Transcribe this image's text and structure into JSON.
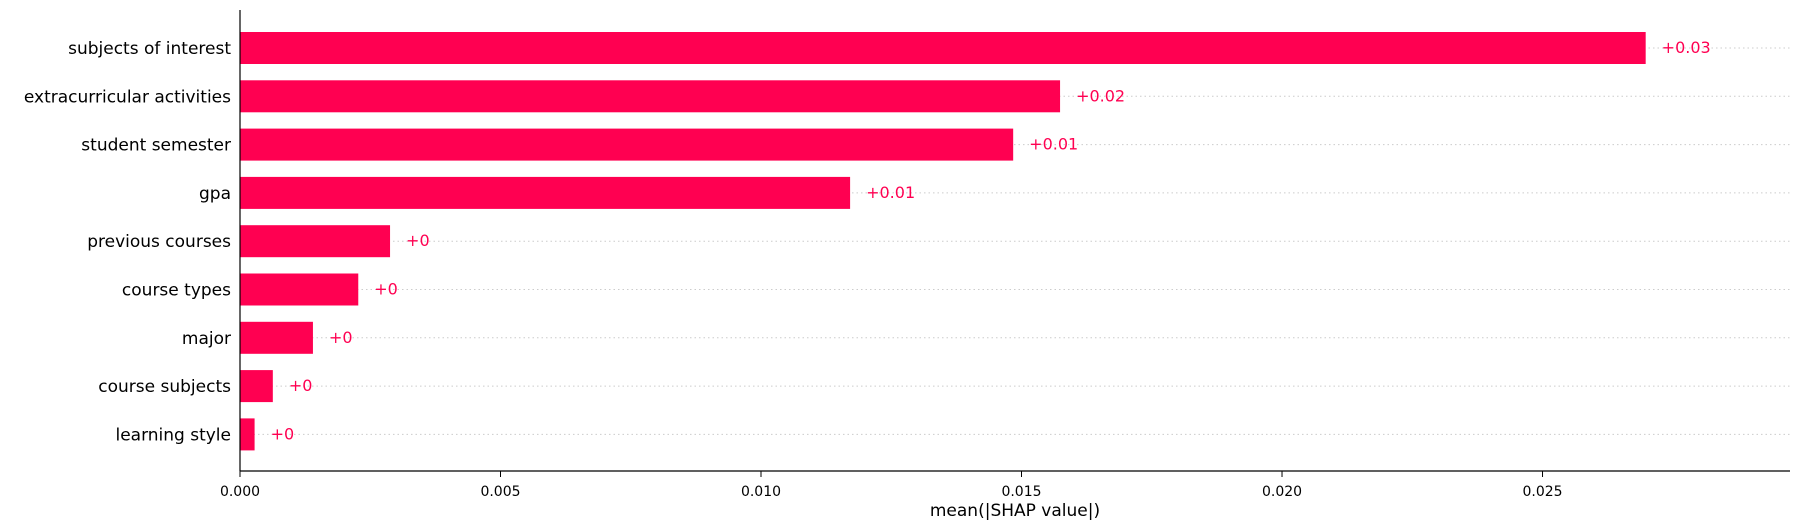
{
  "chart_data": {
    "type": "bar",
    "orientation": "horizontal",
    "categories": [
      "subjects of interest",
      "extracurricular activities",
      "student semester",
      "gpa",
      "previous courses",
      "course types",
      "major",
      "course subjects",
      "learning style"
    ],
    "values": [
      0.02698,
      0.01574,
      0.01484,
      0.01171,
      0.00288,
      0.00227,
      0.0014,
      0.00063,
      0.00028
    ],
    "value_labels": [
      "+0.03",
      "+0.02",
      "+0.01",
      "+0.01",
      "+0",
      "+0",
      "+0",
      "+0",
      "+0"
    ],
    "xlim": [
      0,
      0.02975
    ],
    "xticks": [
      0.0,
      0.005,
      0.01,
      0.015,
      0.02,
      0.025
    ],
    "xtick_labels": [
      "0.000",
      "0.005",
      "0.010",
      "0.015",
      "0.020",
      "0.025"
    ],
    "xlabel": "mean(|SHAP value|)",
    "ylabel": "",
    "title": "",
    "bar_color": "#ff0051",
    "grid": "dotted horizontal guide lines per row",
    "legend": "none"
  }
}
